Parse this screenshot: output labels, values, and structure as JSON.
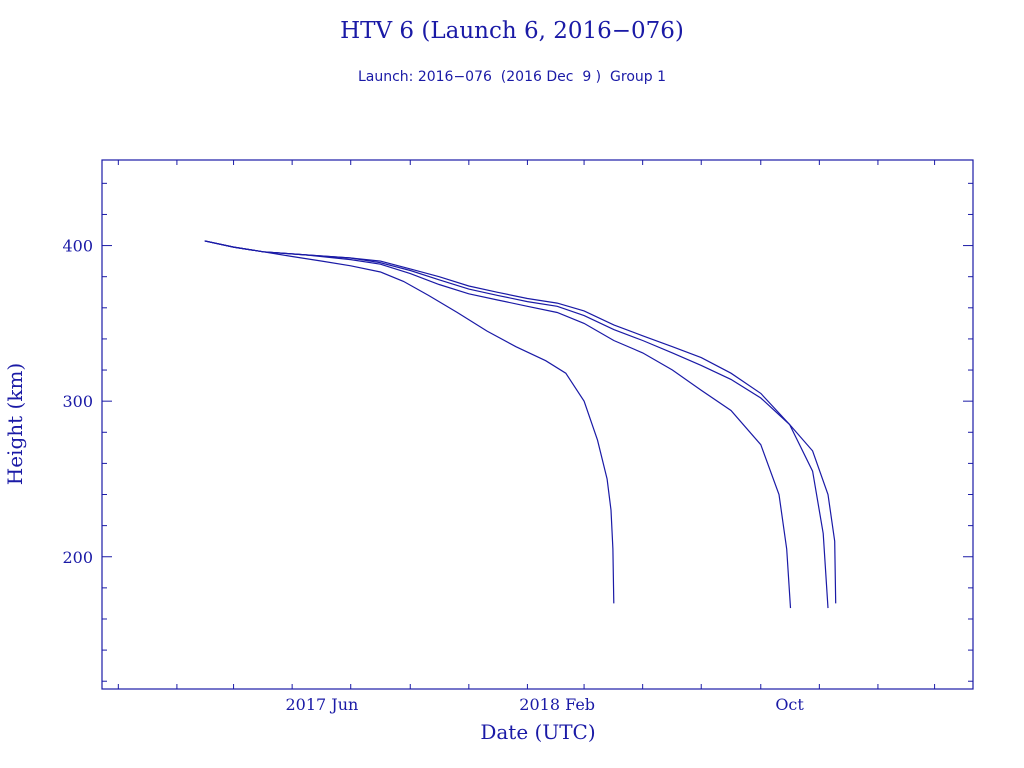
{
  "chart_data": {
    "type": "line",
    "title": "HTV 6 (Launch 6, 2016−076)",
    "subtitle": "Launch: 2016−076  (2016 Dec  9 )  Group 1",
    "xlabel": "Date (UTC)",
    "ylabel": "Height (km)",
    "xlim": [
      "2016-10-15",
      "2019-04-10"
    ],
    "ylim": [
      115,
      455
    ],
    "x_ticks": [
      {
        "date": "2017-06-01",
        "label": "2017 Jun"
      },
      {
        "date": "2018-02-01",
        "label": "2018 Feb"
      },
      {
        "date": "2018-10-01",
        "label": "Oct"
      }
    ],
    "y_ticks": [
      200,
      300,
      400
    ],
    "grid": false,
    "color": "#1a1aa6",
    "series": [
      {
        "points": [
          [
            "2017-01-30",
            403
          ],
          [
            "2017-03-01",
            399
          ],
          [
            "2017-04-01",
            396
          ],
          [
            "2017-05-01",
            393
          ],
          [
            "2017-06-01",
            390
          ],
          [
            "2017-07-01",
            387
          ],
          [
            "2017-08-01",
            383
          ],
          [
            "2017-08-25",
            377
          ],
          [
            "2017-09-20",
            368
          ],
          [
            "2017-10-20",
            357
          ],
          [
            "2017-11-20",
            345
          ],
          [
            "2017-12-20",
            335
          ],
          [
            "2018-01-20",
            326
          ],
          [
            "2018-02-10",
            318
          ],
          [
            "2018-03-01",
            300
          ],
          [
            "2018-03-15",
            275
          ],
          [
            "2018-03-25",
            250
          ],
          [
            "2018-03-29",
            230
          ],
          [
            "2018-03-31",
            205
          ],
          [
            "2018-04-01",
            170
          ]
        ]
      },
      {
        "points": [
          [
            "2017-01-30",
            403
          ],
          [
            "2017-03-01",
            399
          ],
          [
            "2017-04-01",
            396
          ],
          [
            "2017-05-15",
            394
          ],
          [
            "2017-07-01",
            391
          ],
          [
            "2017-08-01",
            388
          ],
          [
            "2017-09-01",
            382
          ],
          [
            "2017-10-01",
            375
          ],
          [
            "2017-11-01",
            369
          ],
          [
            "2017-12-01",
            365
          ],
          [
            "2018-01-01",
            361
          ],
          [
            "2018-02-01",
            357
          ],
          [
            "2018-03-01",
            350
          ],
          [
            "2018-04-01",
            339
          ],
          [
            "2018-05-01",
            331
          ],
          [
            "2018-06-01",
            320
          ],
          [
            "2018-07-01",
            307
          ],
          [
            "2018-08-01",
            294
          ],
          [
            "2018-09-01",
            272
          ],
          [
            "2018-09-20",
            240
          ],
          [
            "2018-09-28",
            205
          ],
          [
            "2018-10-02",
            167
          ]
        ]
      },
      {
        "points": [
          [
            "2017-01-30",
            403
          ],
          [
            "2017-03-01",
            399
          ],
          [
            "2017-04-01",
            396
          ],
          [
            "2017-05-15",
            394
          ],
          [
            "2017-07-01",
            392
          ],
          [
            "2017-08-01",
            389
          ],
          [
            "2017-09-01",
            384
          ],
          [
            "2017-10-01",
            378
          ],
          [
            "2017-11-01",
            372
          ],
          [
            "2017-12-01",
            368
          ],
          [
            "2018-01-01",
            364
          ],
          [
            "2018-02-01",
            361
          ],
          [
            "2018-03-01",
            355
          ],
          [
            "2018-04-01",
            346
          ],
          [
            "2018-05-01",
            339
          ],
          [
            "2018-06-01",
            331
          ],
          [
            "2018-07-01",
            323
          ],
          [
            "2018-08-01",
            314
          ],
          [
            "2018-09-01",
            302
          ],
          [
            "2018-10-01",
            285
          ],
          [
            "2018-10-25",
            255
          ],
          [
            "2018-11-05",
            215
          ],
          [
            "2018-11-10",
            167
          ]
        ]
      },
      {
        "points": [
          [
            "2017-01-30",
            403
          ],
          [
            "2017-03-01",
            399
          ],
          [
            "2017-04-01",
            396
          ],
          [
            "2017-05-15",
            394
          ],
          [
            "2017-07-01",
            392
          ],
          [
            "2017-08-01",
            390
          ],
          [
            "2017-09-01",
            385
          ],
          [
            "2017-10-01",
            380
          ],
          [
            "2017-11-01",
            374
          ],
          [
            "2017-12-01",
            370
          ],
          [
            "2018-01-01",
            366
          ],
          [
            "2018-02-01",
            363
          ],
          [
            "2018-03-01",
            358
          ],
          [
            "2018-04-01",
            349
          ],
          [
            "2018-05-01",
            342
          ],
          [
            "2018-06-01",
            335
          ],
          [
            "2018-07-01",
            328
          ],
          [
            "2018-08-01",
            318
          ],
          [
            "2018-09-01",
            305
          ],
          [
            "2018-10-01",
            285
          ],
          [
            "2018-10-25",
            268
          ],
          [
            "2018-11-10",
            240
          ],
          [
            "2018-11-17",
            210
          ],
          [
            "2018-11-18",
            170
          ]
        ]
      }
    ]
  }
}
